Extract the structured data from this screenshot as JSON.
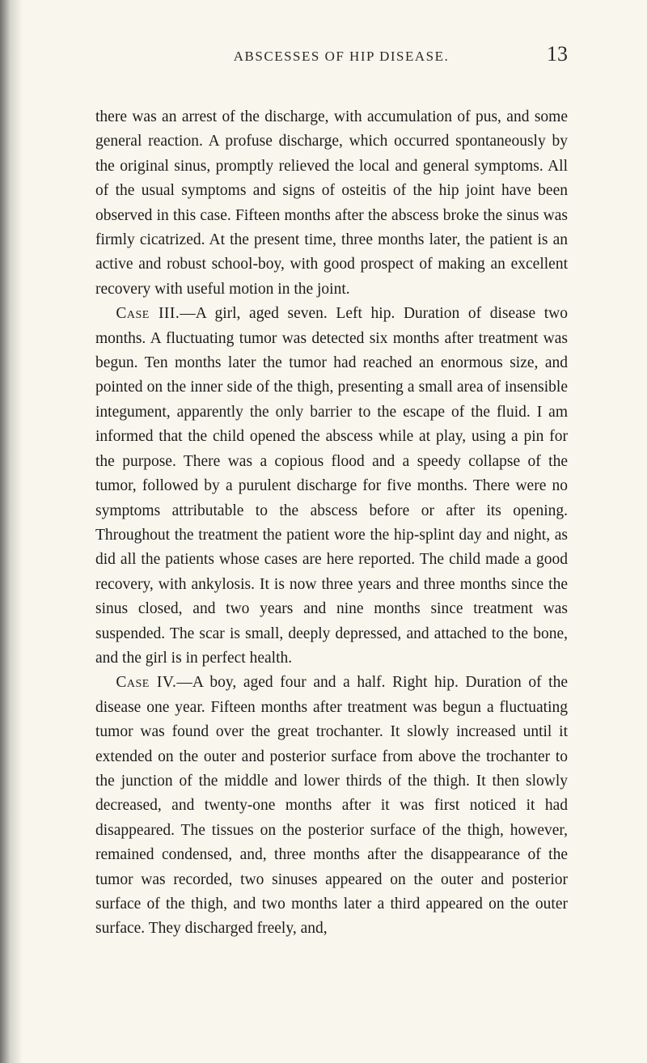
{
  "page": {
    "running_head": "ABSCESSES OF HIP DISEASE.",
    "number": "13",
    "background_color": "#f9f7ed",
    "text_color": "#1c1c1c",
    "body_fontsize": 19.5,
    "line_height": 1.56,
    "header_fontsize": 17,
    "pagenum_fontsize": 26
  },
  "paragraphs": {
    "p1": "there was an arrest of the discharge, with accumulation of pus, and some general reaction. A profuse discharge, which occurred spontaneously by the original sinus, promptly relieved the local and general symptoms. All of the usual symptoms and signs of osteitis of the hip joint have been observed in this case. Fifteen months after the abscess broke the sinus was firmly cicatrized. At the present time, three months later, the patient is an active and robust school-boy, with good prospect of making an excellent recovery with useful motion in the joint.",
    "p2_label": "Case III.",
    "p2": "—A girl, aged seven. Left hip. Duration of disease two months. A fluctuating tumor was detected six months after treatment was begun. Ten months later the tumor had reached an enormous size, and pointed on the inner side of the thigh, presenting a small area of insensible integument, apparently the only barrier to the escape of the fluid. I am informed that the child opened the abscess while at play, using a pin for the purpose. There was a copious flood and a speedy collapse of the tumor, followed by a purulent discharge for five months. There were no symptoms attributable to the abscess before or after its opening. Throughout the treatment the patient wore the hip-splint day and night, as did all the patients whose cases are here reported. The child made a good recovery, with ankylosis. It is now three years and three months since the sinus closed, and two years and nine months since treatment was suspended. The scar is small, deeply depressed, and attached to the bone, and the girl is in perfect health.",
    "p3_label": "Case IV.",
    "p3": "—A boy, aged four and a half. Right hip. Duration of the disease one year. Fifteen months after treatment was begun a fluctuating tumor was found over the great trochanter. It slowly increased until it extended on the outer and posterior surface from above the trochanter to the junction of the middle and lower thirds of the thigh. It then slowly decreased, and twenty-one months after it was first noticed it had disappeared. The tissues on the posterior surface of the thigh, however, remained condensed, and, three months after the disappearance of the tumor was recorded, two sinuses appeared on the outer and posterior surface of the thigh, and two months later a third appeared on the outer surface. They discharged freely, and,"
  }
}
